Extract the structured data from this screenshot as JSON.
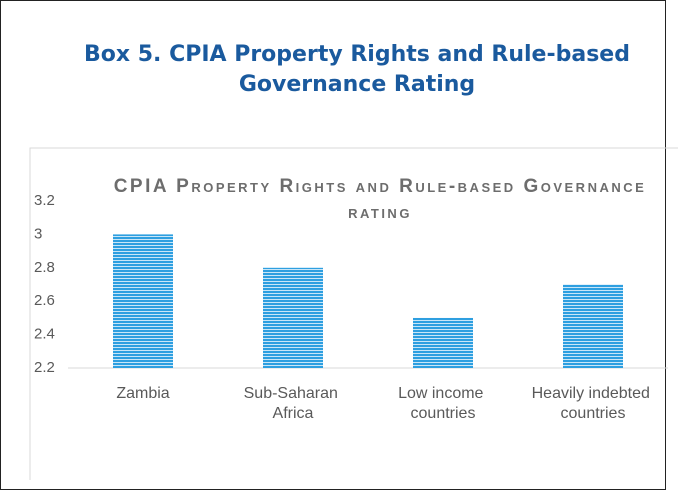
{
  "header": {
    "title": "Box 5. CPIA Property Rights and Rule-based Governance Rating"
  },
  "chart_data": {
    "type": "bar",
    "title": "CPIA Property Rights and Rule-based Governance rating",
    "categories": [
      "Zambia",
      "Sub-Saharan Africa",
      "Low income countries",
      "Heavily indebted countries"
    ],
    "values": [
      3.0,
      2.8,
      2.5,
      2.7
    ],
    "color": "#2e9fe0",
    "ylim": [
      2.2,
      3.2
    ],
    "yticks": [
      2.2,
      2.4,
      2.6,
      2.8,
      3,
      3.2
    ],
    "grid": false
  }
}
